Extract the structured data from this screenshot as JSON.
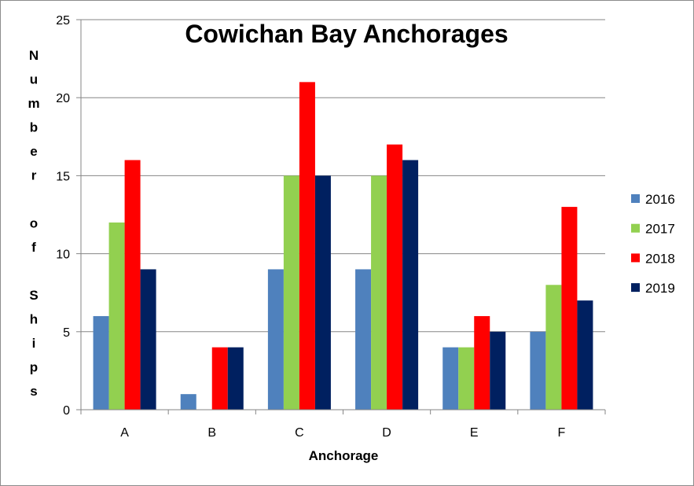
{
  "chart_data": {
    "type": "bar",
    "title": "Cowichan Bay Anchorages",
    "xlabel": "Anchorage",
    "ylabel": "Number of Ships",
    "categories": [
      "A",
      "B",
      "C",
      "D",
      "E",
      "F"
    ],
    "series": [
      {
        "name": "2016",
        "color": "#4f81bd",
        "values": [
          6,
          1,
          9,
          9,
          4,
          5
        ]
      },
      {
        "name": "2017",
        "color": "#92d050",
        "values": [
          12,
          0,
          15,
          15,
          4,
          8
        ]
      },
      {
        "name": "2018",
        "color": "#ff0000",
        "values": [
          16,
          4,
          21,
          17,
          6,
          13
        ]
      },
      {
        "name": "2019",
        "color": "#002060",
        "values": [
          9,
          4,
          15,
          16,
          5,
          7
        ]
      }
    ],
    "ylim": [
      0,
      25
    ],
    "yticks": [
      0,
      5,
      10,
      15,
      20,
      25
    ],
    "grid": true,
    "legend": "right"
  }
}
